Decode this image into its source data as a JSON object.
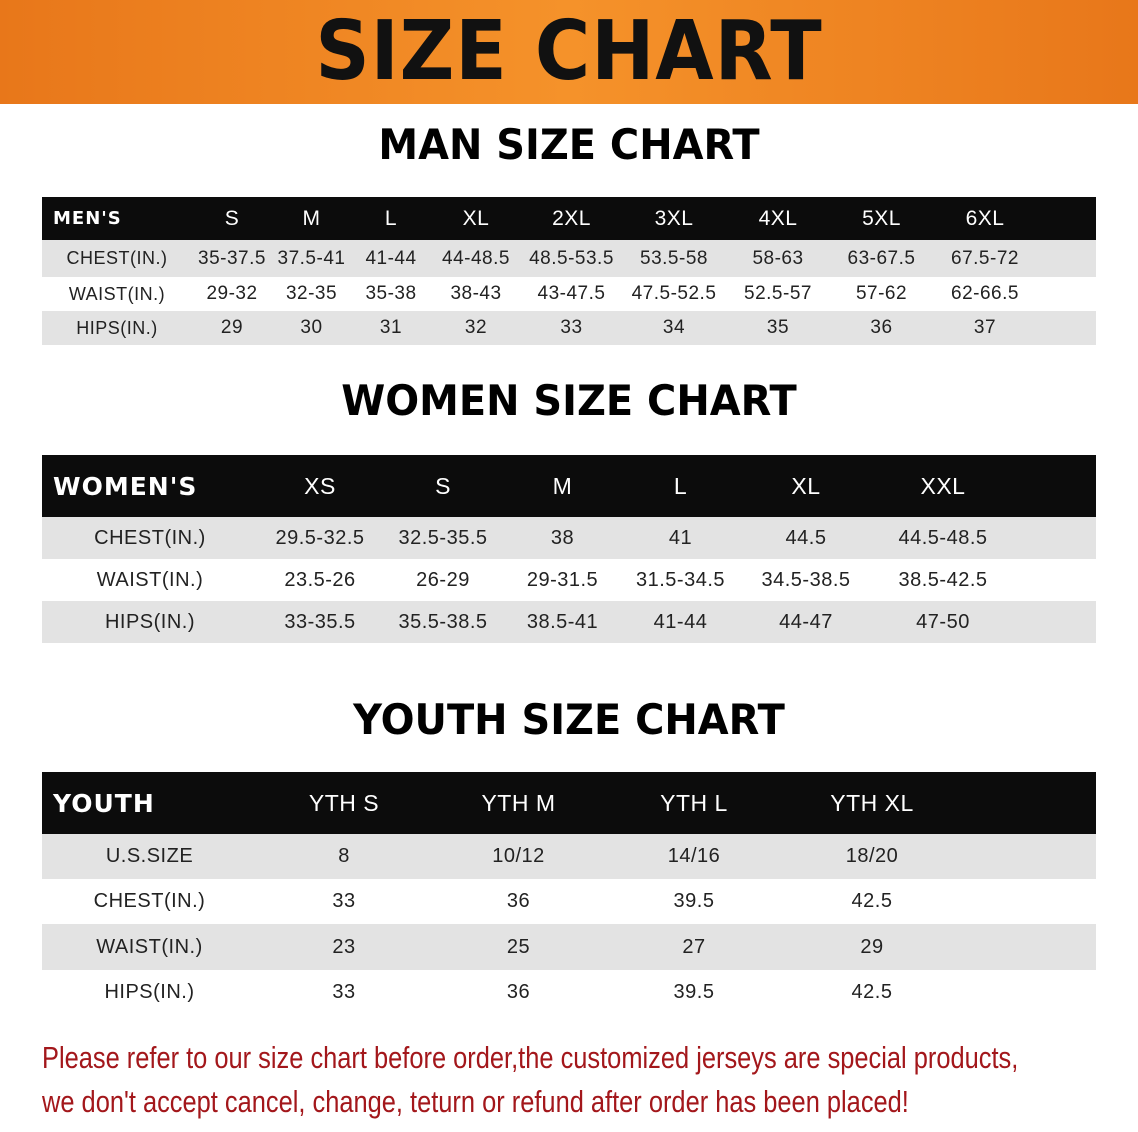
{
  "title": "SIZE CHART",
  "colors": {
    "banner": "#f08a22",
    "header_row": "#0c0c0c",
    "stripe": "#e3e3e3",
    "note": "#a3171b"
  },
  "men": {
    "title": "MAN SIZE CHART",
    "header": [
      "MEN'S",
      "S",
      "M",
      "L",
      "XL",
      "2XL",
      "3XL",
      "4XL",
      "5XL",
      "6XL",
      ""
    ],
    "rows": [
      [
        "CHEST(IN.)",
        "35-37.5",
        "37.5-41",
        "41-44",
        "44-48.5",
        "48.5-53.5",
        "53.5-58",
        "58-63",
        "63-67.5",
        "67.5-72",
        ""
      ],
      [
        "WAIST(IN.)",
        "29-32",
        "32-35",
        "35-38",
        "38-43",
        "43-47.5",
        "47.5-52.5",
        "52.5-57",
        "57-62",
        "62-66.5",
        ""
      ],
      [
        "HIPS(IN.)",
        "29",
        "30",
        "31",
        "32",
        "33",
        "34",
        "35",
        "36",
        "37",
        ""
      ]
    ]
  },
  "women": {
    "title": "WOMEN SIZE CHART",
    "header": [
      "WOMEN'S",
      "XS",
      "S",
      "M",
      "L",
      "XL",
      "XXL",
      ""
    ],
    "rows": [
      [
        "CHEST(IN.)",
        "29.5-32.5",
        "32.5-35.5",
        "38",
        "41",
        "44.5",
        "44.5-48.5",
        ""
      ],
      [
        "WAIST(IN.)",
        "23.5-26",
        "26-29",
        "29-31.5",
        "31.5-34.5",
        "34.5-38.5",
        "38.5-42.5",
        ""
      ],
      [
        "HIPS(IN.)",
        "33-35.5",
        "35.5-38.5",
        "38.5-41",
        "41-44",
        "44-47",
        "47-50",
        ""
      ]
    ]
  },
  "youth": {
    "title": "YOUTH SIZE CHART",
    "header": [
      "YOUTH",
      "YTH S",
      "YTH M",
      "YTH L",
      "YTH XL",
      ""
    ],
    "rows": [
      [
        "U.S.SIZE",
        "8",
        "10/12",
        "14/16",
        "18/20",
        ""
      ],
      [
        "CHEST(IN.)",
        "33",
        "36",
        "39.5",
        "42.5",
        ""
      ],
      [
        "WAIST(IN.)",
        "23",
        "25",
        "27",
        "29",
        ""
      ],
      [
        "HIPS(IN.)",
        "33",
        "36",
        "39.5",
        "42.5",
        ""
      ]
    ]
  },
  "note": {
    "line1": "Please refer to our size chart before order,the customized jerseys are special products,",
    "line2": "we don't accept cancel, change, teturn or refund after order has been placed!"
  }
}
